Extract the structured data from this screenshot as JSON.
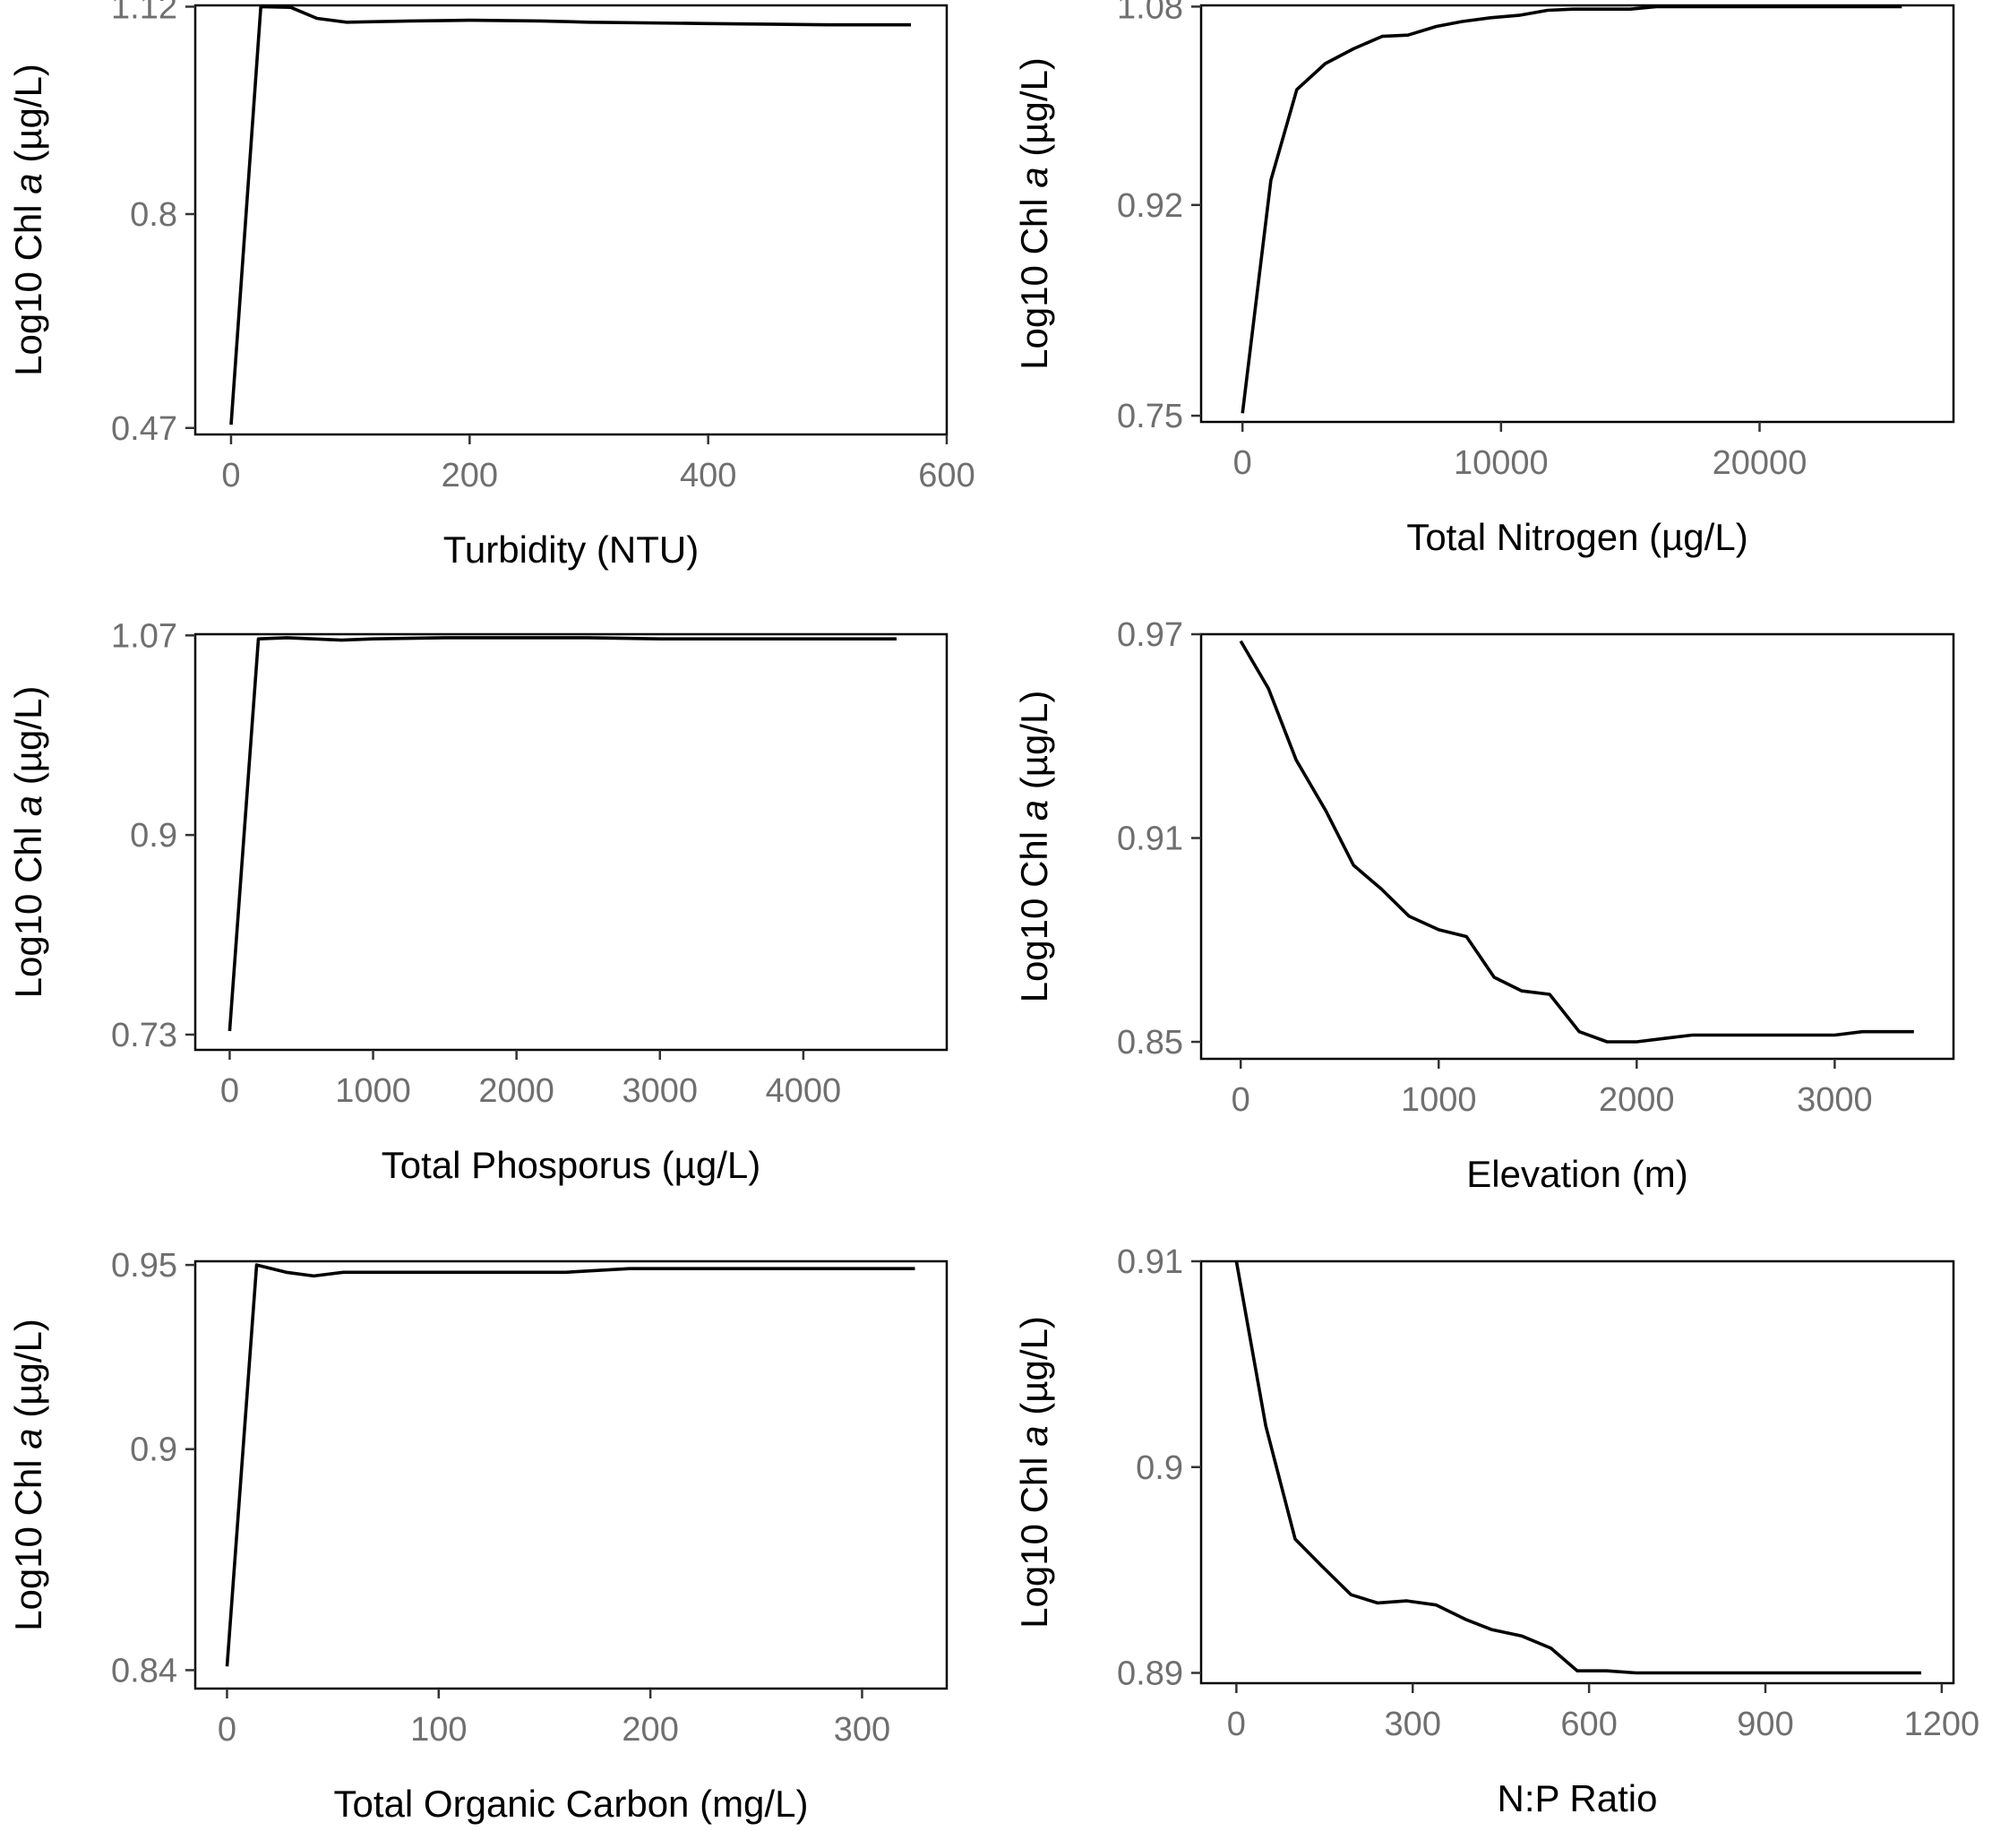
{
  "chart_data": [
    {
      "type": "line",
      "xlabel": "Turbidity (NTU)",
      "ylabel": {
        "prefix": "Log10 Chl ",
        "italic": "a",
        "suffix": " (µg/L)"
      },
      "xlim": [
        -30,
        600
      ],
      "ylim": [
        0.46,
        1.122
      ],
      "xticks": [
        0,
        200,
        400,
        600
      ],
      "xtick_labels": [
        "0",
        "200",
        "400",
        "600"
      ],
      "yticks": [
        0.47,
        0.8,
        1.12
      ],
      "ytick_labels": [
        "0.47",
        "0.8",
        "1.12"
      ],
      "x": [
        0,
        25,
        50,
        72,
        97,
        150,
        200,
        260,
        300,
        400,
        500,
        570
      ],
      "y": [
        0.475,
        1.12,
        1.119,
        1.102,
        1.096,
        1.098,
        1.099,
        1.098,
        1.096,
        1.094,
        1.092,
        1.092
      ]
    },
    {
      "type": "line",
      "xlabel": "Total Nitrogen (µg/L)",
      "ylabel": {
        "prefix": "Log10 Chl ",
        "italic": "a",
        "suffix": " (µg/L)"
      },
      "xlim": [
        -1600,
        27500
      ],
      "ylim": [
        0.745,
        1.081
      ],
      "xticks": [
        0,
        10000,
        20000
      ],
      "xtick_labels": [
        "0",
        "10000",
        "20000"
      ],
      "yticks": [
        0.75,
        0.92,
        1.08
      ],
      "ytick_labels": [
        "0.75",
        "0.92",
        "1.08"
      ],
      "x": [
        0,
        1100,
        2100,
        3200,
        4300,
        5400,
        6400,
        7500,
        8500,
        9600,
        10700,
        11800,
        12800,
        15000,
        16000,
        19000,
        22000,
        25500
      ],
      "y": [
        0.752,
        0.94,
        1.013,
        1.034,
        1.046,
        1.056,
        1.057,
        1.064,
        1.068,
        1.071,
        1.073,
        1.077,
        1.078,
        1.078,
        1.08,
        1.08,
        1.08,
        1.08
      ]
    },
    {
      "type": "line",
      "xlabel": "Total Phosporus (µg/L)",
      "ylabel": {
        "prefix": "Log10 Chl ",
        "italic": "a",
        "suffix": " (µg/L)"
      },
      "xlim": [
        -240,
        5000
      ],
      "ylim": [
        0.717,
        1.071
      ],
      "xticks": [
        0,
        1000,
        2000,
        3000,
        4000
      ],
      "xtick_labels": [
        "0",
        "1000",
        "2000",
        "3000",
        "4000"
      ],
      "yticks": [
        0.73,
        0.9,
        1.07
      ],
      "ytick_labels": [
        "0.73",
        "0.9",
        "1.07"
      ],
      "x": [
        0,
        200,
        400,
        780,
        1000,
        1500,
        2000,
        2500,
        3000,
        3500,
        4000,
        4650
      ],
      "y": [
        0.733,
        1.067,
        1.068,
        1.066,
        1.067,
        1.068,
        1.068,
        1.068,
        1.067,
        1.067,
        1.067,
        1.067
      ]
    },
    {
      "type": "line",
      "xlabel": "Elevation (m)",
      "ylabel": {
        "prefix": "Log10 Chl ",
        "italic": "a",
        "suffix": " (µg/L)"
      },
      "xlim": [
        -200,
        3600
      ],
      "ylim": [
        0.845,
        0.97
      ],
      "xticks": [
        0,
        1000,
        2000,
        3000
      ],
      "xtick_labels": [
        "0",
        "1000",
        "2000",
        "3000"
      ],
      "yticks": [
        0.85,
        0.91,
        0.97
      ],
      "ytick_labels": [
        "0.85",
        "0.91",
        "0.97"
      ],
      "x": [
        0,
        140,
        280,
        430,
        570,
        710,
        850,
        1000,
        1140,
        1280,
        1420,
        1560,
        1710,
        1850,
        2000,
        2140,
        2280,
        2420,
        2560,
        2700,
        2850,
        3000,
        3140,
        3400
      ],
      "y": [
        0.968,
        0.954,
        0.933,
        0.918,
        0.902,
        0.895,
        0.887,
        0.883,
        0.881,
        0.869,
        0.865,
        0.864,
        0.853,
        0.85,
        0.85,
        0.851,
        0.852,
        0.852,
        0.852,
        0.852,
        0.852,
        0.852,
        0.853,
        0.853
      ]
    },
    {
      "type": "line",
      "xlabel": "Total Organic Carbon (mg/L)",
      "ylabel": {
        "prefix": "Log10 Chl ",
        "italic": "a",
        "suffix": " (µg/L)"
      },
      "xlim": [
        -15,
        340
      ],
      "ylim": [
        0.835,
        0.951
      ],
      "xticks": [
        0,
        100,
        200,
        300
      ],
      "xtick_labels": [
        "0",
        "100",
        "200",
        "300"
      ],
      "yticks": [
        0.84,
        0.9,
        0.95
      ],
      "ytick_labels": [
        "0.84",
        "0.9",
        "0.95"
      ],
      "x": [
        0,
        14,
        28,
        41,
        55,
        68,
        82,
        100,
        120,
        135,
        160,
        190,
        220,
        250,
        280,
        325
      ],
      "y": [
        0.841,
        0.95,
        0.948,
        0.947,
        0.948,
        0.948,
        0.948,
        0.948,
        0.948,
        0.948,
        0.948,
        0.949,
        0.949,
        0.949,
        0.949,
        0.949
      ]
    },
    {
      "type": "line",
      "xlabel": "N:P Ratio",
      "ylabel": {
        "prefix": "Log10 Chl ",
        "italic": "a",
        "suffix": " (µg/L)"
      },
      "xlim": [
        -60,
        1220
      ],
      "ylim": [
        0.8895,
        0.91
      ],
      "xticks": [
        0,
        300,
        600,
        900,
        1200
      ],
      "xtick_labels": [
        "0",
        "300",
        "600",
        "900",
        "1200"
      ],
      "yticks": [
        0.89,
        0.9,
        0.91
      ],
      "ytick_labels": [
        "0.89",
        "0.9",
        "0.91"
      ],
      "x": [
        0,
        25,
        50,
        100,
        145,
        195,
        240,
        290,
        340,
        390,
        435,
        485,
        535,
        580,
        630,
        680,
        800,
        1000,
        1165
      ],
      "y": [
        0.91,
        0.906,
        0.902,
        0.8965,
        0.8952,
        0.8938,
        0.8934,
        0.8935,
        0.8933,
        0.8926,
        0.8921,
        0.8918,
        0.8912,
        0.8901,
        0.8901,
        0.89,
        0.89,
        0.89,
        0.89
      ]
    }
  ]
}
